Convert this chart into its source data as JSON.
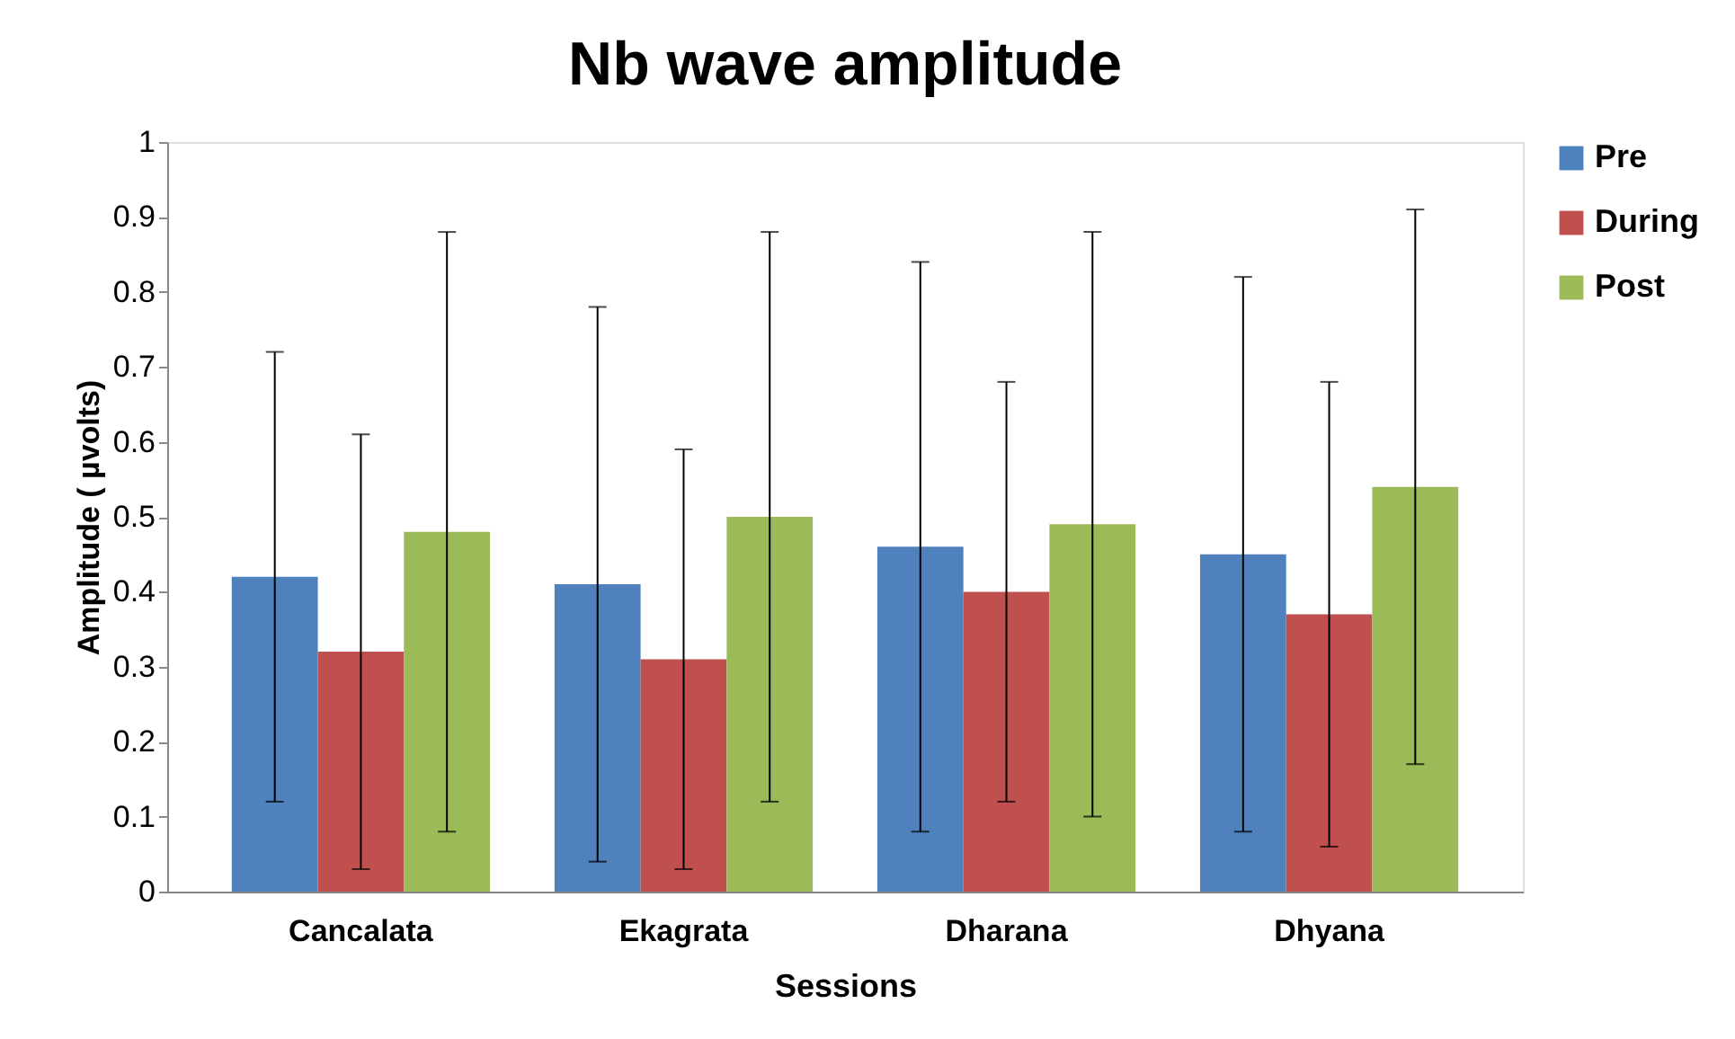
{
  "chart_data": {
    "type": "bar",
    "title": "Nb wave amplitude",
    "xlabel": "Sessions",
    "ylabel": "Amplitude ( µvolts)",
    "categories": [
      "Cancalata",
      "Ekagrata",
      "Dharana",
      "Dhyana"
    ],
    "series": [
      {
        "name": "Pre",
        "color": "#4f81bd",
        "values": [
          0.42,
          0.41,
          0.46,
          0.45
        ],
        "errors": [
          [
            0.12,
            0.72
          ],
          [
            0.04,
            0.78
          ],
          [
            0.08,
            0.84
          ],
          [
            0.08,
            0.82
          ]
        ]
      },
      {
        "name": "During",
        "color": "#c0504d",
        "values": [
          0.32,
          0.31,
          0.4,
          0.37
        ],
        "errors": [
          [
            0.03,
            0.61
          ],
          [
            0.03,
            0.59
          ],
          [
            0.12,
            0.68
          ],
          [
            0.06,
            0.68
          ]
        ]
      },
      {
        "name": "Post",
        "color": "#9bbb59",
        "values": [
          0.48,
          0.5,
          0.49,
          0.54
        ],
        "errors": [
          [
            0.08,
            0.88
          ],
          [
            0.12,
            0.88
          ],
          [
            0.1,
            0.88
          ],
          [
            0.17,
            0.91
          ]
        ]
      }
    ],
    "ylim": [
      0,
      1
    ],
    "yticks": [
      0,
      0.1,
      0.2,
      0.3,
      0.4,
      0.5,
      0.6,
      0.7,
      0.8,
      0.9,
      1
    ],
    "grid": false,
    "legend": "right"
  }
}
